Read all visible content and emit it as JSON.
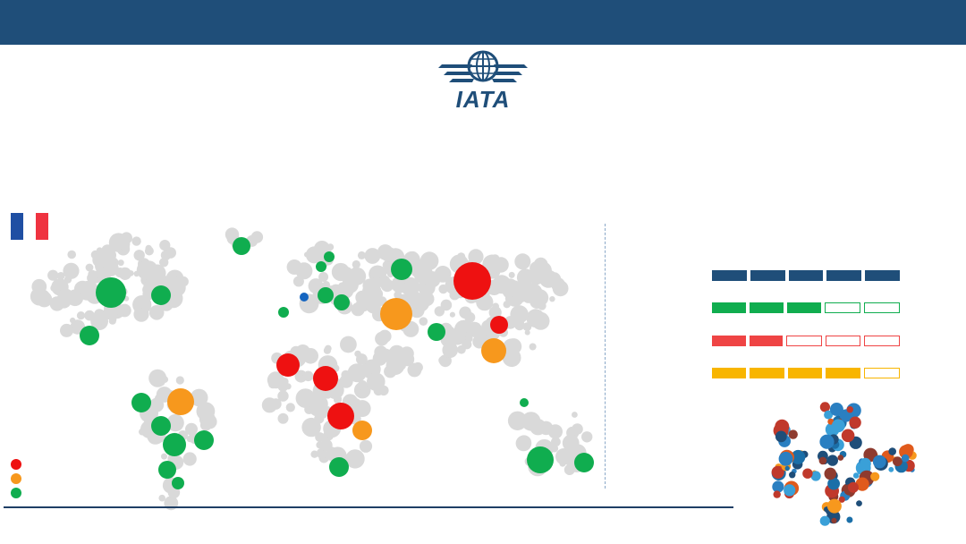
{
  "header": {
    "logo_text": "IATA"
  },
  "flag": {
    "colors": [
      "#1f4fa3",
      "#ffffff",
      "#ef3340"
    ]
  },
  "colors": {
    "bar": "#1f4e79",
    "red": "#ee1111",
    "orange": "#f7981d",
    "green": "#10ad4f",
    "blue": "#1565c0",
    "grey": "#d9d9d9"
  },
  "legend": [
    {
      "status": "red",
      "color": "#ee1111"
    },
    {
      "status": "orange",
      "color": "#f7981d"
    },
    {
      "status": "green",
      "color": "#10ad4f"
    }
  ],
  "ratings": [
    {
      "color": "#1f4e79",
      "filled": 5,
      "total": 5
    },
    {
      "color": "#10ad4f",
      "filled": 3,
      "total": 5
    },
    {
      "color": "#ef4444",
      "filled": 2,
      "total": 5
    },
    {
      "color": "#f8b500",
      "filled": 4,
      "total": 5
    }
  ],
  "map_markers": [
    {
      "region": "western-canada",
      "status": "green"
    },
    {
      "region": "eastern-canada",
      "status": "green"
    },
    {
      "region": "mexico",
      "status": "green"
    },
    {
      "region": "greenland",
      "status": "green"
    },
    {
      "region": "colombia",
      "status": "green"
    },
    {
      "region": "venezuela-brazil-north",
      "status": "orange"
    },
    {
      "region": "peru",
      "status": "green"
    },
    {
      "region": "bolivia",
      "status": "green"
    },
    {
      "region": "brazil-east",
      "status": "green"
    },
    {
      "region": "chile",
      "status": "green"
    },
    {
      "region": "argentina-south",
      "status": "green"
    },
    {
      "region": "scandinavia",
      "status": "green"
    },
    {
      "region": "uk",
      "status": "green"
    },
    {
      "region": "france",
      "status": "blue"
    },
    {
      "region": "central-europe",
      "status": "green"
    },
    {
      "region": "balkans",
      "status": "green"
    },
    {
      "region": "iberia",
      "status": "green"
    },
    {
      "region": "russia-west",
      "status": "green"
    },
    {
      "region": "russia-siberia",
      "status": "red"
    },
    {
      "region": "central-asia",
      "status": "orange"
    },
    {
      "region": "india",
      "status": "green"
    },
    {
      "region": "china",
      "status": "red"
    },
    {
      "region": "south-china",
      "status": "orange"
    },
    {
      "region": "west-africa",
      "status": "red"
    },
    {
      "region": "central-africa",
      "status": "red"
    },
    {
      "region": "east-africa",
      "status": "red"
    },
    {
      "region": "kenya-tanzania",
      "status": "orange"
    },
    {
      "region": "south-africa",
      "status": "green"
    },
    {
      "region": "indonesia",
      "status": "green"
    },
    {
      "region": "australia-west",
      "status": "green"
    },
    {
      "region": "new-zealand",
      "status": "green"
    }
  ]
}
